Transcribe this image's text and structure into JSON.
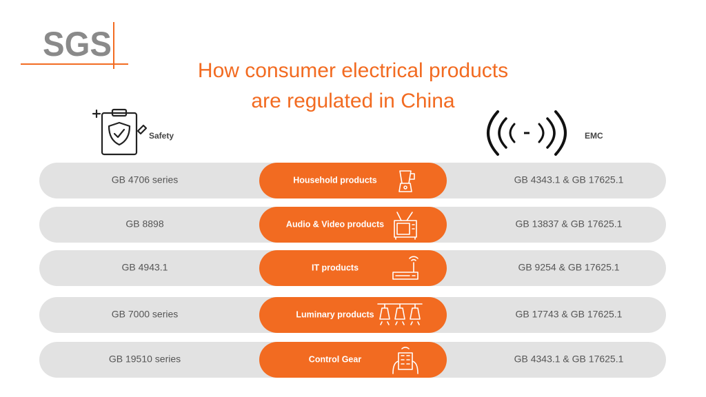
{
  "logo": "SGS",
  "title": [
    "How consumer electrical products",
    "are regulated in China"
  ],
  "columns": {
    "left": "Safety",
    "right": "EMC"
  },
  "rows": [
    {
      "safety": "GB 4706 series",
      "category": "Household products",
      "emc": "GB 4343.1 & GB 17625.1"
    },
    {
      "safety": "GB 8898",
      "category": "Audio & Video products",
      "emc": "GB 13837 & GB 17625.1"
    },
    {
      "safety": "GB 4943.1",
      "category": "IT products",
      "emc": "GB 9254 & GB 17625.1"
    },
    {
      "safety": "GB 7000 series",
      "category": "Luminary products",
      "emc": "GB 17743 & GB 17625.1"
    },
    {
      "safety": "GB 19510 series",
      "category": "Control Gear",
      "emc": "GB 4343.1 & GB 17625.1"
    }
  ]
}
